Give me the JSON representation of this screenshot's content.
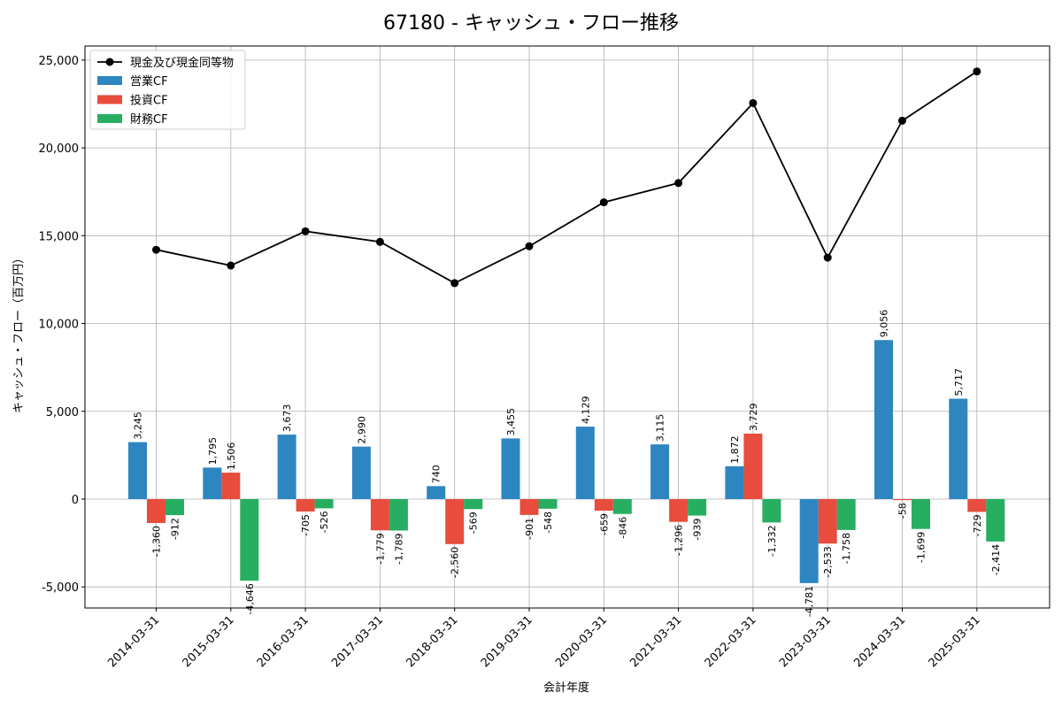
{
  "chart_data": {
    "type": "bar+line",
    "title": "67180 - キャッシュ・フロー推移",
    "xlabel": "会計年度",
    "ylabel": "キャッシュ・フロー（百万円）",
    "ylim": [
      -6200,
      25800
    ],
    "yticks": [
      -5000,
      0,
      5000,
      10000,
      15000,
      20000,
      25000
    ],
    "ytick_labels": [
      "-5,000",
      "0",
      "5,000",
      "10,000",
      "15,000",
      "20,000",
      "25,000"
    ],
    "grid": true,
    "legend_position": "top-left",
    "categories": [
      "2014-03-31",
      "2015-03-31",
      "2016-03-31",
      "2017-03-31",
      "2018-03-31",
      "2019-03-31",
      "2020-03-31",
      "2021-03-31",
      "2022-03-31",
      "2023-03-31",
      "2024-03-31",
      "2025-03-31"
    ],
    "line_series": {
      "name": "現金及び現金同等物",
      "color": "#000000",
      "values": [
        14200,
        13300,
        15250,
        14650,
        12300,
        14400,
        16900,
        18000,
        22550,
        13750,
        21550,
        24350
      ]
    },
    "bar_series": [
      {
        "name": "営業CF",
        "color": "#2E86C1",
        "values": [
          3245,
          1795,
          3673,
          2990,
          740,
          3455,
          4129,
          3115,
          1872,
          -4781,
          9056,
          5717
        ],
        "labels": [
          "3,245",
          "1,795",
          "3,673",
          "2,990",
          "740",
          "3,455",
          "4,129",
          "3,115",
          "1,872",
          "-4,781",
          "9,056",
          "5,717"
        ]
      },
      {
        "name": "投資CF",
        "color": "#E74C3C",
        "values": [
          -1360,
          1506,
          -705,
          -1779,
          -2560,
          -901,
          -659,
          -1296,
          3729,
          -2533,
          -58,
          -729
        ],
        "labels": [
          "-1,360",
          "1,506",
          "-705",
          "-1,779",
          "-2,560",
          "-901",
          "-659",
          "-1,296",
          "3,729",
          "-2,533",
          "-58",
          "-729"
        ]
      },
      {
        "name": "財務CF",
        "color": "#27AE60",
        "values": [
          -912,
          -4646,
          -526,
          -1789,
          -569,
          -548,
          -846,
          -939,
          -1332,
          -1758,
          -1699,
          -2414
        ],
        "labels": [
          "-912",
          "-4,646",
          "-526",
          "-1,789",
          "-569",
          "-548",
          "-846",
          "-939",
          "-1,332",
          "-1,758",
          "-1,699",
          "-2,414"
        ]
      }
    ]
  }
}
